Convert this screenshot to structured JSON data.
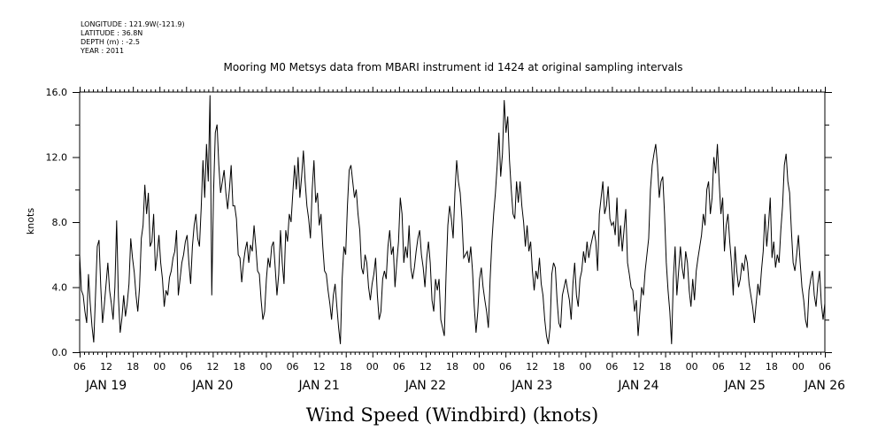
{
  "meta": {
    "longitude": "LONGITUDE : 121.9W(-121.9)",
    "latitude": "LATITUDE : 36.8N",
    "depth": "DEPTH (m) : -2.5",
    "year": "YEAR : 2011"
  },
  "chart_data": {
    "type": "line",
    "title": "Mooring M0 Metsys data from MBARI instrument id 1424 at original sampling intervals",
    "xlabel": "Wind Speed (Windbird) (knots)",
    "ylabel": "knots",
    "ylim": [
      0,
      16
    ],
    "xlim_hours": [
      0,
      168
    ],
    "y_ticks": [
      "0.0",
      "4.0",
      "8.0",
      "12.0",
      "16.0"
    ],
    "x_hour_ticks": [
      "06",
      "12",
      "18",
      "00",
      "06",
      "12",
      "18",
      "00",
      "06",
      "12",
      "18",
      "00",
      "06",
      "12",
      "18",
      "00",
      "06",
      "12",
      "18",
      "00",
      "06",
      "12",
      "18",
      "00",
      "06",
      "12",
      "18",
      "00",
      "06"
    ],
    "x_day_labels": [
      "JAN 19",
      "JAN 20",
      "JAN 21",
      "JAN 22",
      "JAN 23",
      "JAN 24",
      "JAN 25",
      "JAN 26"
    ],
    "x_start": "2011-01-19T06:00",
    "sample_interval_hours": 0.5,
    "grid": false,
    "series": [
      {
        "values": [
          6.0,
          3.8,
          3.5,
          2.5,
          1.8,
          4.8,
          3.0,
          1.6,
          0.6,
          3.5,
          6.5,
          6.9,
          4.0,
          1.8,
          2.9,
          4.2,
          5.5,
          3.8,
          3.0,
          2.0,
          4.0,
          8.1,
          3.4,
          1.2,
          2.1,
          3.5,
          2.2,
          3.0,
          4.2,
          7.0,
          5.8,
          4.9,
          3.5,
          2.5,
          4.0,
          7.0,
          7.8,
          10.3,
          8.5,
          9.8,
          6.5,
          6.8,
          8.5,
          5.0,
          6.0,
          7.2,
          5.5,
          4.5,
          2.8,
          3.8,
          3.5,
          4.6,
          5.0,
          5.8,
          6.2,
          7.5,
          3.5,
          4.5,
          5.5,
          6.0,
          6.8,
          7.2,
          5.5,
          4.2,
          6.5,
          7.8,
          8.5,
          7.0,
          6.5,
          8.9,
          11.8,
          9.5,
          12.8,
          10.5,
          15.8,
          3.5,
          9.8,
          13.5,
          14.0,
          11.5,
          9.8,
          10.5,
          11.2,
          9.8,
          8.8,
          10.0,
          11.5,
          9.0,
          9.0,
          8.2,
          6.0,
          5.8,
          4.3,
          5.5,
          6.3,
          6.8,
          5.5,
          6.6,
          6.2,
          7.8,
          6.5,
          5.0,
          4.8,
          3.2,
          2.0,
          2.5,
          4.5,
          5.8,
          5.2,
          6.5,
          6.8,
          5.2,
          3.5,
          4.8,
          7.5,
          5.5,
          4.2,
          7.5,
          6.8,
          8.5,
          8.0,
          9.8,
          11.5,
          10.0,
          12.0,
          9.5,
          10.8,
          12.4,
          10.5,
          9.0,
          8.2,
          7.0,
          10.0,
          11.8,
          9.2,
          9.8,
          7.8,
          8.5,
          6.5,
          5.0,
          4.8,
          3.8,
          3.0,
          2.0,
          3.5,
          4.2,
          2.8,
          1.5,
          0.5,
          4.5,
          6.5,
          6.0,
          9.0,
          11.2,
          11.5,
          10.5,
          9.5,
          10.0,
          8.5,
          7.5,
          5.2,
          4.8,
          6.0,
          5.5,
          4.0,
          3.2,
          4.2,
          4.8,
          5.8,
          3.5,
          2.0,
          2.5,
          4.5,
          5.0,
          4.5,
          6.5,
          7.5,
          6.0,
          6.5,
          4.0,
          5.5,
          6.8,
          9.5,
          8.5,
          5.5,
          6.5,
          5.8,
          7.8,
          5.2,
          4.5,
          5.2,
          6.2,
          7.0,
          7.5,
          6.0,
          5.2,
          4.0,
          5.8,
          6.8,
          5.5,
          3.2,
          2.5,
          4.5,
          3.8,
          4.5,
          2.0,
          1.5,
          1.0,
          4.8,
          7.8,
          9.0,
          8.2,
          7.0,
          9.8,
          11.8,
          10.5,
          9.8,
          8.2,
          5.8,
          6.0,
          6.2,
          5.5,
          6.5,
          5.0,
          2.8,
          1.2,
          2.5,
          4.5,
          5.2,
          4.0,
          3.2,
          2.5,
          1.5,
          4.5,
          6.8,
          8.5,
          9.8,
          11.5,
          13.5,
          10.8,
          12.2,
          15.5,
          13.5,
          14.5,
          11.8,
          10.0,
          8.5,
          8.2,
          10.5,
          9.2,
          10.5,
          9.0,
          8.0,
          6.5,
          7.8,
          6.2,
          6.8,
          5.0,
          3.8,
          5.0,
          4.5,
          5.8,
          4.2,
          3.5,
          2.0,
          1.0,
          0.5,
          1.5,
          4.8,
          5.5,
          5.2,
          3.2,
          1.8,
          1.5,
          3.5,
          4.0,
          4.5,
          3.8,
          3.2,
          2.0,
          4.2,
          5.5,
          3.5,
          2.8,
          4.5,
          5.0,
          6.2,
          5.5,
          6.8,
          5.8,
          6.5,
          7.0,
          7.5,
          6.8,
          5.0,
          8.5,
          9.5,
          10.5,
          8.5,
          9.0,
          10.2,
          8.2,
          7.8,
          8.0,
          7.2,
          9.5,
          6.5,
          7.8,
          6.2,
          7.5,
          8.8,
          5.5,
          4.8,
          4.0,
          3.8,
          2.5,
          3.2,
          1.0,
          2.5,
          4.0,
          3.5,
          5.0,
          6.0,
          7.0,
          10.0,
          11.5,
          12.2,
          12.8,
          11.5,
          9.5,
          10.5,
          10.8,
          8.5,
          5.5,
          3.8,
          2.5,
          0.5,
          4.5,
          6.5,
          3.5,
          5.0,
          6.5,
          5.2,
          4.5,
          6.2,
          5.5,
          3.8,
          2.8,
          4.5,
          3.2,
          5.0,
          5.8,
          6.5,
          7.2,
          8.5,
          7.8,
          10.0,
          10.5,
          8.5,
          9.5,
          12.0,
          11.0,
          12.8,
          10.5,
          8.5,
          9.5,
          6.2,
          7.8,
          8.5,
          6.8,
          5.5,
          3.5,
          6.5,
          5.0,
          4.0,
          4.5,
          5.5,
          5.0,
          6.0,
          5.5,
          4.2,
          3.5,
          2.8,
          1.8,
          3.0,
          4.2,
          3.5,
          5.0,
          6.2,
          8.5,
          6.5,
          7.8,
          9.5,
          5.8,
          6.8,
          5.2,
          6.0,
          5.5,
          7.5,
          9.0,
          11.5,
          12.2,
          10.5,
          9.8,
          7.5,
          5.5,
          5.0,
          6.0,
          7.2,
          5.5,
          4.0,
          3.2,
          2.0,
          1.5,
          3.8,
          4.5,
          5.0,
          3.5,
          2.8,
          4.2,
          5.0,
          3.0,
          2.0,
          3.0
        ]
      }
    ]
  }
}
